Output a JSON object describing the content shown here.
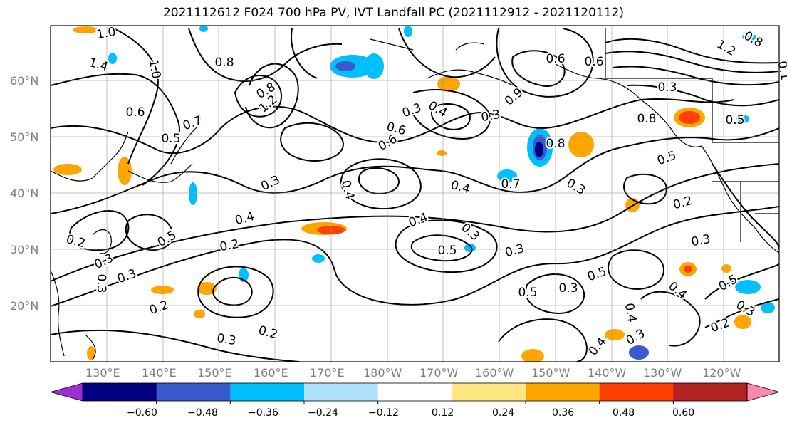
{
  "title": "2021112612 F024 700 hPa PV, IVT Landfall PC (2021112912 - 2021120112)",
  "map": {
    "projection": "PlateCarree",
    "lon_range_deg_east": [
      120,
      250
    ],
    "lat_range_deg": [
      10,
      70
    ],
    "lat_labels": [
      "20°N",
      "30°N",
      "40°N",
      "50°N",
      "60°N"
    ],
    "lon_labels": [
      "130°E",
      "140°E",
      "150°E",
      "160°E",
      "170°E",
      "180°W",
      "170°W",
      "160°W",
      "150°W",
      "140°W",
      "130°W",
      "120°W"
    ],
    "gridlines": true,
    "contour_labels": [
      "1.0",
      "1.4",
      "1.0",
      "0.8",
      "0.6",
      "0.7",
      "0.5",
      "0.3",
      "0.4",
      "0.5",
      "0.2",
      "0.3",
      "0.3",
      "0.2",
      "0.3",
      "0.2",
      "0.2",
      "0.3",
      "0.8",
      "1.2",
      "0.9",
      "0.3",
      "0.4",
      "0.6",
      "0.6",
      "0.3",
      "0.4",
      "0.4",
      "0.5",
      "0.3",
      "0.4",
      "0.3",
      "0.5",
      "0.3",
      "0.5",
      "0.3",
      "0.4",
      "0.8",
      "0.6",
      "0.3",
      "0.8",
      "0.5",
      "0.5",
      "0.2",
      "0.3",
      "0.4",
      "0.5",
      "0.3",
      "0.2",
      "0.4",
      "0.3",
      "0.7",
      "0.8",
      "0.1",
      "1.2",
      "0.6"
    ]
  },
  "colorbar": {
    "ticks": [
      "−0.60",
      "−0.48",
      "−0.36",
      "−0.24",
      "−0.12",
      "0.12",
      "0.24",
      "0.36",
      "0.48",
      "0.60"
    ],
    "colors": [
      "#9b30d0",
      "#000080",
      "#3a5bd0",
      "#00bfff",
      "#b0e2ff",
      "#ffffff",
      "#ffe680",
      "#ffa500",
      "#ff4000",
      "#b22222",
      "#ff88aa"
    ]
  },
  "shading_colors": {
    "neg_strong": "#000080",
    "neg_mid": "#3a5bd0",
    "neg": "#00bfff",
    "neg_weak": "#b0e2ff",
    "pos_weak": "#ffe680",
    "pos": "#ffa500",
    "pos_mid": "#ff4000"
  }
}
